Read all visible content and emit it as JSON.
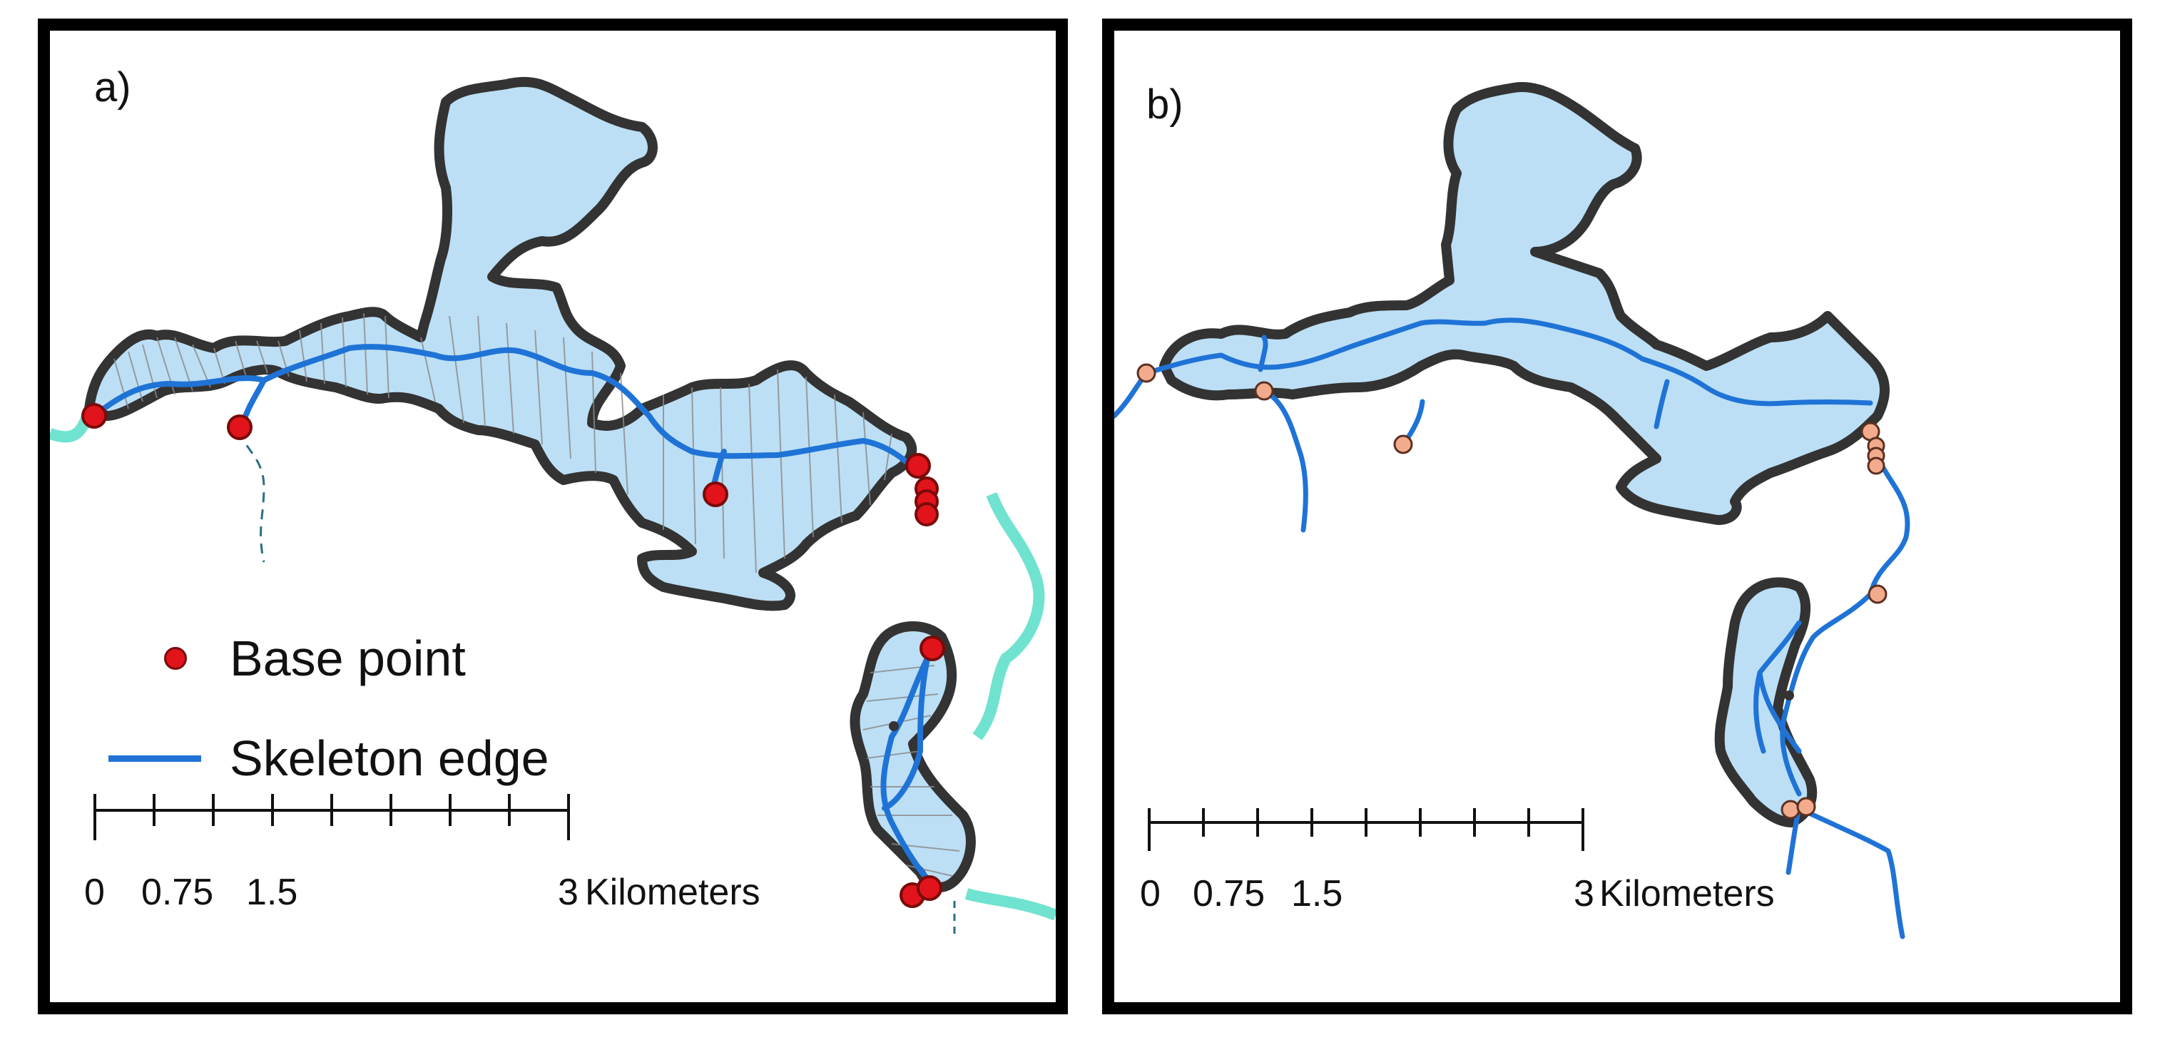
{
  "panels": [
    {
      "label": "a)",
      "legend": {
        "base_point": "Base point",
        "skeleton_edge": "Skeleton edge"
      },
      "scale": {
        "ticks": [
          "0",
          "0.75",
          "1.5",
          "3"
        ],
        "unit": "Kilometers"
      }
    },
    {
      "label": "b)",
      "scale": {
        "ticks": [
          "0",
          "0.75",
          "1.5",
          "3"
        ],
        "unit": "Kilometers"
      }
    }
  ],
  "colors": {
    "polygon_fill": "#bcdff5",
    "polygon_outline": "#333333",
    "skeleton_edge": "#1f73d6",
    "base_point_a": "#e1141b",
    "base_point_b": "#f2ab8c",
    "stream": "#6fe3cf",
    "triangulation": "#8a8a8a"
  }
}
